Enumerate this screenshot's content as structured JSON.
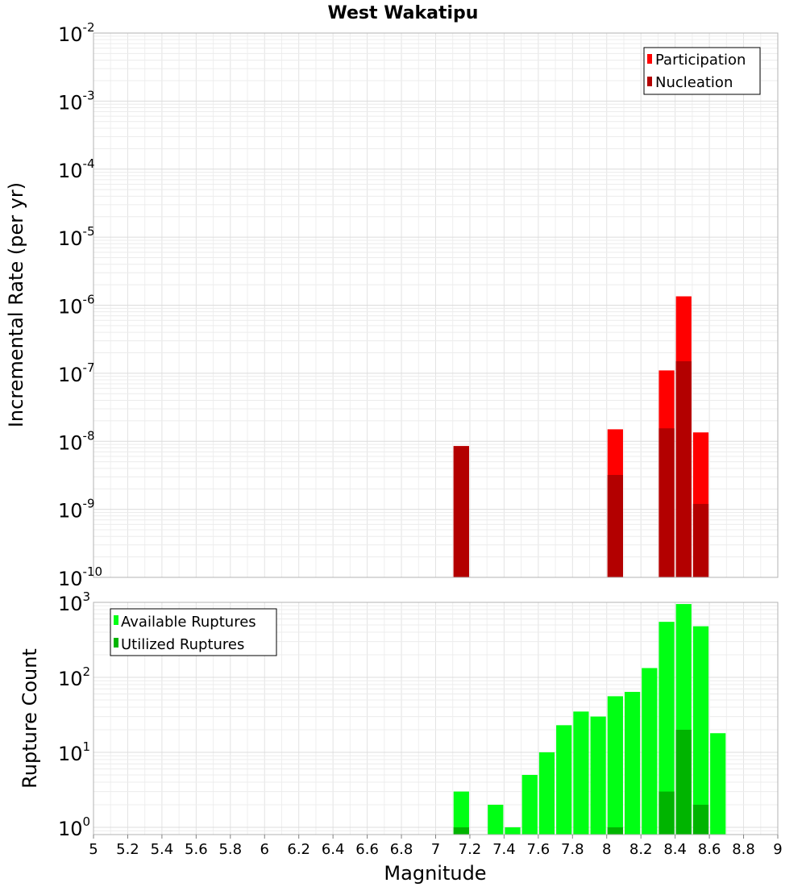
{
  "chart_data": [
    {
      "type": "bar",
      "title": "West Wakatipu",
      "xlabel": "",
      "ylabel": "Incremental Rate (per yr)",
      "yscale": "log",
      "ylim": [
        1e-10,
        0.01
      ],
      "xlim": [
        5,
        9
      ],
      "bin_width": 0.1,
      "grid": true,
      "legend_position": "top-right",
      "y_ticks": [
        {
          "base": "10",
          "exp": "-10"
        },
        {
          "base": "10",
          "exp": "-9"
        },
        {
          "base": "10",
          "exp": "-8"
        },
        {
          "base": "10",
          "exp": "-7"
        },
        {
          "base": "10",
          "exp": "-6"
        },
        {
          "base": "10",
          "exp": "-5"
        },
        {
          "base": "10",
          "exp": "-4"
        },
        {
          "base": "10",
          "exp": "-3"
        },
        {
          "base": "10",
          "exp": "-2"
        }
      ],
      "series": [
        {
          "name": "Participation",
          "color": "#ff0000",
          "points": [
            {
              "x": 7.15,
              "y": 8.5e-09
            },
            {
              "x": 8.05,
              "y": 1.5e-08
            },
            {
              "x": 8.35,
              "y": 1.1e-07
            },
            {
              "x": 8.45,
              "y": 1.35e-06
            },
            {
              "x": 8.55,
              "y": 1.35e-08
            }
          ]
        },
        {
          "name": "Nucleation",
          "color": "#b30000",
          "points": [
            {
              "x": 7.15,
              "y": 8.5e-09
            },
            {
              "x": 8.05,
              "y": 3.2e-09
            },
            {
              "x": 8.35,
              "y": 1.55e-08
            },
            {
              "x": 8.45,
              "y": 1.5e-07
            },
            {
              "x": 8.55,
              "y": 1.2e-09
            }
          ]
        }
      ]
    },
    {
      "type": "bar",
      "title": "",
      "xlabel": "Magnitude",
      "ylabel": "Rupture Count",
      "yscale": "log",
      "ylim": [
        0.8,
        1000
      ],
      "xlim": [
        5,
        9
      ],
      "bin_width": 0.1,
      "grid": true,
      "legend_position": "top-left",
      "x_ticks": [
        "5",
        "5.2",
        "5.4",
        "5.6",
        "5.8",
        "6",
        "6.2",
        "6.4",
        "6.6",
        "6.8",
        "7",
        "7.2",
        "7.4",
        "7.6",
        "7.8",
        "8",
        "8.2",
        "8.4",
        "8.6",
        "8.8",
        "9"
      ],
      "y_ticks": [
        {
          "base": "10",
          "exp": "0"
        },
        {
          "base": "10",
          "exp": "1"
        },
        {
          "base": "10",
          "exp": "2"
        },
        {
          "base": "10",
          "exp": "3"
        }
      ],
      "series": [
        {
          "name": "Available Ruptures",
          "color": "#00ff14",
          "points": [
            {
              "x": 7.15,
              "y": 3
            },
            {
              "x": 7.35,
              "y": 2
            },
            {
              "x": 7.45,
              "y": 1
            },
            {
              "x": 7.55,
              "y": 5
            },
            {
              "x": 7.65,
              "y": 10
            },
            {
              "x": 7.75,
              "y": 23
            },
            {
              "x": 7.85,
              "y": 35
            },
            {
              "x": 7.95,
              "y": 30
            },
            {
              "x": 8.05,
              "y": 56
            },
            {
              "x": 8.15,
              "y": 64
            },
            {
              "x": 8.25,
              "y": 133
            },
            {
              "x": 8.35,
              "y": 550
            },
            {
              "x": 8.45,
              "y": 950
            },
            {
              "x": 8.55,
              "y": 480
            },
            {
              "x": 8.65,
              "y": 18
            }
          ]
        },
        {
          "name": "Utilized Ruptures",
          "color": "#00b400",
          "points": [
            {
              "x": 7.15,
              "y": 1
            },
            {
              "x": 8.05,
              "y": 1
            },
            {
              "x": 8.35,
              "y": 3
            },
            {
              "x": 8.45,
              "y": 20
            },
            {
              "x": 8.55,
              "y": 2
            }
          ]
        }
      ]
    }
  ]
}
